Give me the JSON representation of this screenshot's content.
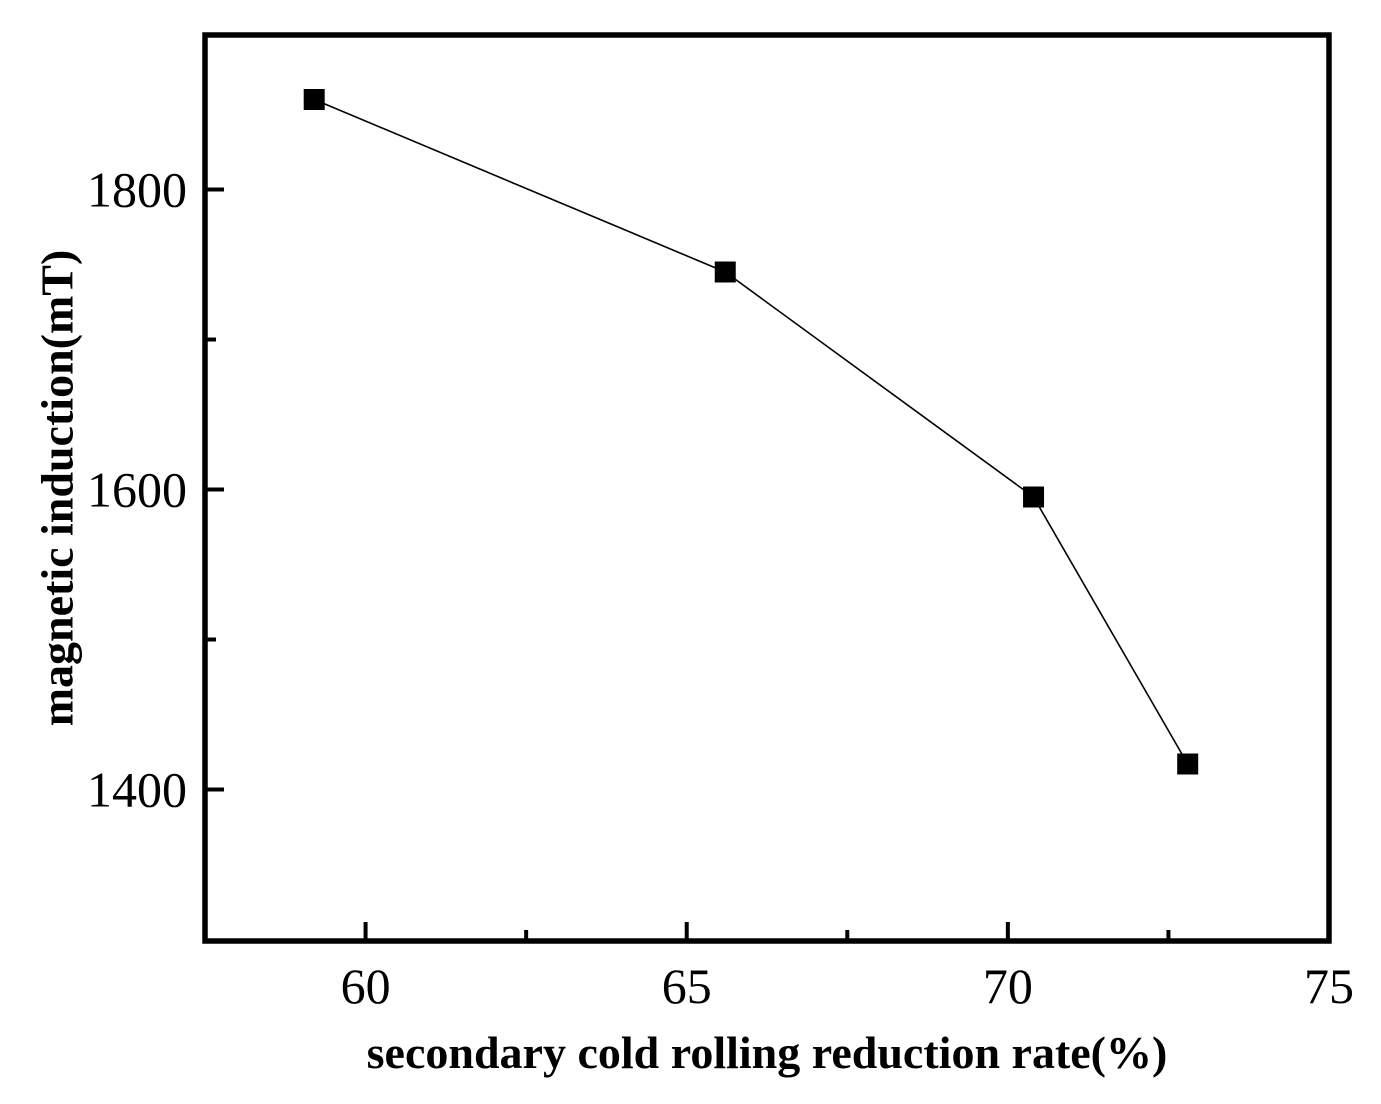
{
  "figure": {
    "background_color": "#ffffff",
    "foreground_color": "#000000"
  },
  "chart_data": {
    "type": "line",
    "title": "",
    "xlabel": "secondary cold rolling reduction rate(%)",
    "ylabel": "magnetic induction(mT)",
    "grid": false,
    "legend": null,
    "marker": "filled-square",
    "line_color": "#000000",
    "marker_color": "#000000",
    "x_axis": {
      "min": 57.5,
      "max": 75,
      "major_ticks": [
        60,
        65,
        70,
        75
      ],
      "tick_labels": [
        "60",
        "65",
        "70",
        "75"
      ],
      "minor_ticks": [
        62.5,
        67.5,
        72.5
      ]
    },
    "y_axis": {
      "min": 1299,
      "max": 1903,
      "major_ticks": [
        1400,
        1600,
        1800
      ],
      "tick_labels": [
        "1400",
        "1600",
        "1800"
      ],
      "minor_ticks": [
        1500,
        1700
      ]
    },
    "series": [
      {
        "name": "magnetic induction",
        "x": [
          59.2,
          65.6,
          70.4,
          72.8
        ],
        "y": [
          1860,
          1745,
          1595,
          1417
        ]
      }
    ]
  }
}
